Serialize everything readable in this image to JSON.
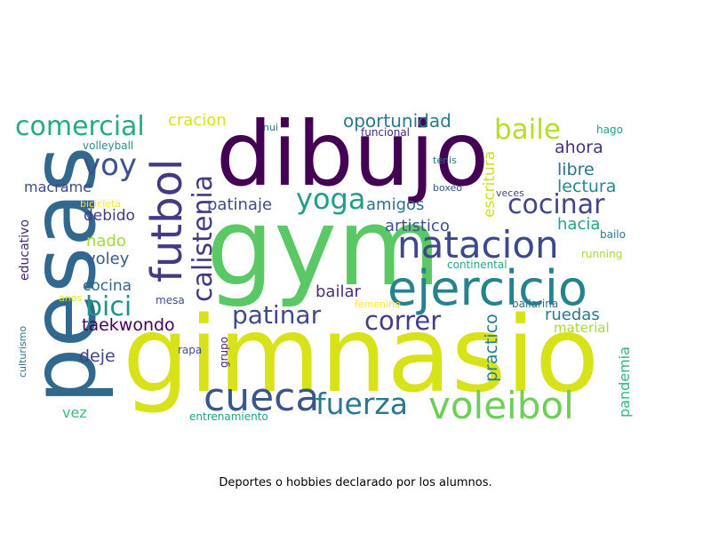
{
  "caption": "Deportes o hobbies declarado por los alumnos.",
  "palette": {
    "dark_purple": "#440154",
    "purple": "#482878",
    "indigo": "#3e4989",
    "blue": "#31688e",
    "teal": "#26828e",
    "sea_green": "#1f9e89",
    "green": "#35b779",
    "light_green": "#6ece58",
    "yellow_green": "#b5de2b",
    "yellow": "#fde725"
  },
  "words": [
    {
      "text": "gym",
      "color": "#5ac864"
    },
    {
      "text": "gimnasio",
      "color": "#d8e219"
    },
    {
      "text": "dibujo",
      "color": "#440154"
    },
    {
      "text": "pesas",
      "color": "#31688e"
    },
    {
      "text": "ejercicio",
      "color": "#26828e"
    },
    {
      "text": "natacion",
      "color": "#3e4989"
    },
    {
      "text": "futbol",
      "color": "#443983"
    },
    {
      "text": "voleibol",
      "color": "#6ece58"
    },
    {
      "text": "cueca",
      "color": "#39568c"
    },
    {
      "text": "fuerza",
      "color": "#2a788e"
    },
    {
      "text": "comercial",
      "color": "#25ab82"
    },
    {
      "text": "calistenia",
      "color": "#453882"
    },
    {
      "text": "baile",
      "color": "#b5de2b"
    },
    {
      "text": "cocinar",
      "color": "#404688"
    },
    {
      "text": "yoga",
      "color": "#1f9e89"
    },
    {
      "text": "voy",
      "color": "#3b528b"
    },
    {
      "text": "patinar",
      "color": "#3e4a89"
    },
    {
      "text": "correr",
      "color": "#433e85"
    },
    {
      "text": "bici",
      "color": "#1f948c"
    },
    {
      "text": "taekwondo",
      "color": "#440154"
    },
    {
      "text": "oportunidad",
      "color": "#2a788e"
    },
    {
      "text": "cracion",
      "color": "#d5e21a"
    },
    {
      "text": "ahora",
      "color": "#46327e"
    },
    {
      "text": "libre",
      "color": "#2c728e"
    },
    {
      "text": "lectura",
      "color": "#23888e"
    },
    {
      "text": "patinaje",
      "color": "#3f4889"
    },
    {
      "text": "amigos",
      "color": "#2d708e"
    },
    {
      "text": "artistico",
      "color": "#3b528b"
    },
    {
      "text": "escritura",
      "color": "#d0e11c"
    },
    {
      "text": "hacia",
      "color": "#20a386"
    },
    {
      "text": "macrame",
      "color": "#3f4889"
    },
    {
      "text": "debido",
      "color": "#453781"
    },
    {
      "text": "nado",
      "color": "#a0da39"
    },
    {
      "text": "voley",
      "color": "#365c8d"
    },
    {
      "text": "cocina",
      "color": "#31688e"
    },
    {
      "text": "bailar",
      "color": "#472d7b"
    },
    {
      "text": "practico",
      "color": "#277f8e"
    },
    {
      "text": "ruedas",
      "color": "#2a768e"
    },
    {
      "text": "material",
      "color": "#a8db34"
    },
    {
      "text": "pandemia",
      "color": "#35b779"
    },
    {
      "text": "deje",
      "color": "#414487"
    },
    {
      "text": "vez",
      "color": "#3dbc74"
    },
    {
      "text": "educativo",
      "color": "#482475"
    },
    {
      "text": "culturismo",
      "color": "#2c728e"
    },
    {
      "text": "volleyball",
      "color": "#21918c"
    },
    {
      "text": "bicicleta",
      "color": "#fde725"
    },
    {
      "text": "nui",
      "color": "#2e6e8e"
    },
    {
      "text": "funcional",
      "color": "#482878"
    },
    {
      "text": "tenis",
      "color": "#2d708e"
    },
    {
      "text": "boxeo",
      "color": "#3b528b"
    },
    {
      "text": "veces",
      "color": "#414487"
    },
    {
      "text": "hago",
      "color": "#1fa187"
    },
    {
      "text": "bailo",
      "color": "#2a788e"
    },
    {
      "text": "running",
      "color": "#a5db36"
    },
    {
      "text": "continental",
      "color": "#22a785"
    },
    {
      "text": "bailarina",
      "color": "#2e6f8e"
    },
    {
      "text": "femenino",
      "color": "#fde725"
    },
    {
      "text": "mesa",
      "color": "#3e4c8a"
    },
    {
      "text": "anos",
      "color": "#e2e418"
    },
    {
      "text": "rapa",
      "color": "#3a538b"
    },
    {
      "text": "grupo",
      "color": "#482173"
    },
    {
      "text": "entrenamiento",
      "color": "#1fa088"
    }
  ]
}
